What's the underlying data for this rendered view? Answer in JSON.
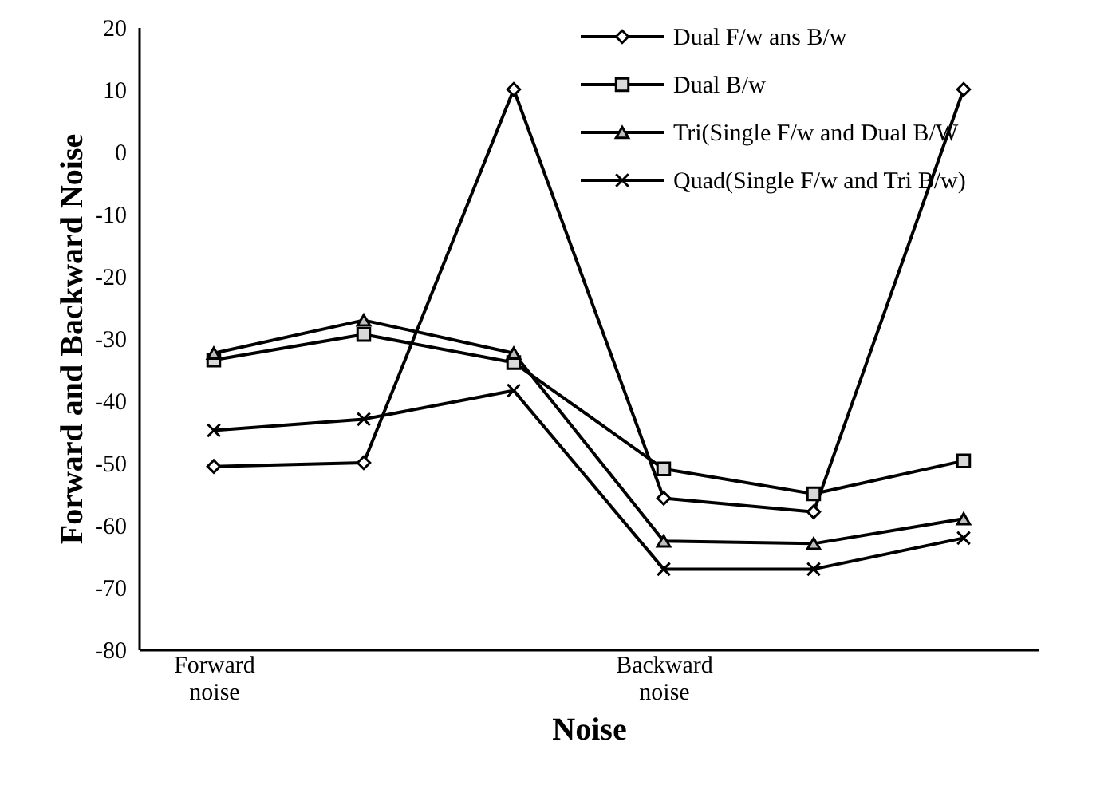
{
  "chart_data": {
    "type": "line",
    "xlabel": "Noise",
    "ylabel": "Forward and Backward Noise",
    "categories": [
      "Forward noise",
      null,
      null,
      "Backward noise",
      null,
      null
    ],
    "ylim": [
      -80,
      20
    ],
    "yticks": [
      -80,
      -70,
      -60,
      -50,
      -40,
      -30,
      -20,
      -10,
      0,
      10,
      20
    ],
    "grid": false,
    "legend": "top right",
    "line_style": "solid",
    "series": [
      {
        "name": "Dual F/w ans B/w",
        "color": "#000000",
        "marker": "diamond",
        "values": [
          -50.6,
          -50,
          10,
          -55.7,
          -57.9,
          10
        ]
      },
      {
        "name": "Dual B/w",
        "color": "#000000",
        "marker": "square",
        "values": [
          -33.5,
          -29.4,
          -33.9,
          -51,
          -55,
          -49.7
        ]
      },
      {
        "name": "Tri(Single F/w and Dual B/W",
        "color": "#000000",
        "marker": "triangle",
        "values": [
          -32.4,
          -27.1,
          -32.4,
          -62.6,
          -63,
          -59
        ]
      },
      {
        "name": "Quad(Single F/w and Tri B/w)",
        "color": "#000000",
        "marker": "cross",
        "values": [
          -44.8,
          -43,
          -38.4,
          -67.1,
          -67.1,
          -62.1
        ]
      }
    ]
  }
}
